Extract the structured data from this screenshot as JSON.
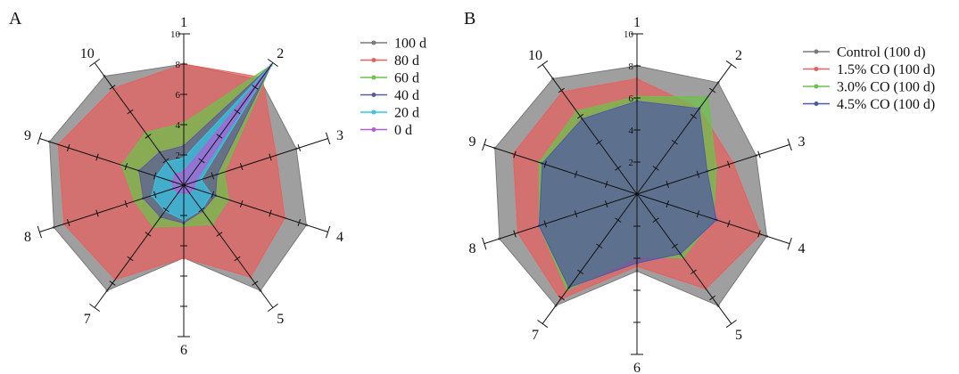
{
  "chart_data": [
    {
      "type": "radar",
      "panel_label": "A",
      "axes": [
        "1",
        "2",
        "3",
        "4",
        "5",
        "6",
        "7",
        "8",
        "9",
        "10"
      ],
      "rlim": [
        0,
        10
      ],
      "r_ticks": [
        "2",
        "4",
        "6",
        "8",
        "10"
      ],
      "legend_position": "right",
      "series": [
        {
          "name": "100 d",
          "color": "#7a7a7a",
          "values": [
            8,
            8.6,
            7.8,
            8.5,
            8.6,
            4.8,
            8.6,
            9.0,
            9.3,
            8.9
          ]
        },
        {
          "name": "80 d",
          "color": "#e8605f",
          "values": [
            8,
            8.8,
            6.4,
            7.0,
            7.5,
            4.8,
            7.7,
            8.3,
            8.7,
            7.9
          ]
        },
        {
          "name": "60 d",
          "color": "#6cc24a",
          "values": [
            4.1,
            9.8,
            2.8,
            3.1,
            3.2,
            2.7,
            3.4,
            3.4,
            4.3,
            4.3
          ]
        },
        {
          "name": "40 d",
          "color": "#5a5a9a",
          "values": [
            2.6,
            9.8,
            2.3,
            2.2,
            2.1,
            2.5,
            2.6,
            2.8,
            3.1,
            2.7
          ]
        },
        {
          "name": "20 d",
          "color": "#38c5e6",
          "values": [
            1.8,
            9.8,
            1.2,
            1.9,
            2.0,
            2.3,
            2.1,
            2.2,
            1.9,
            1.9
          ]
        },
        {
          "name": "0 d",
          "color": "#b05fd6",
          "values": [
            0.9,
            9.6,
            0.8,
            0.7,
            0.6,
            0.5,
            0.6,
            0.7,
            0.8,
            0.9
          ]
        }
      ]
    },
    {
      "type": "radar",
      "panel_label": "B",
      "axes": [
        "1",
        "2",
        "3",
        "4",
        "5",
        "6",
        "7",
        "8",
        "9",
        "10"
      ],
      "rlim": [
        0,
        10
      ],
      "r_ticks": [
        "2",
        "4",
        "6",
        "8",
        "10"
      ],
      "legend_position": "right",
      "series": [
        {
          "name": "Control (100 d)",
          "color": "#7a7a7a",
          "values": [
            8,
            8.6,
            7.8,
            8.5,
            8.6,
            4.8,
            8.6,
            9.0,
            9.3,
            8.9
          ]
        },
        {
          "name": "1.5% CO (100 d)",
          "color": "#e8605f",
          "values": [
            7.2,
            6.6,
            6.3,
            8.1,
            7.3,
            4.5,
            8.1,
            7.8,
            8.1,
            7.9
          ]
        },
        {
          "name": "3.0% CO (100 d)",
          "color": "#6cc24a",
          "values": [
            6.1,
            7.5,
            5.2,
            5.0,
            4.9,
            3.9,
            7.4,
            6.4,
            6.4,
            6.4
          ]
        },
        {
          "name": "4.5% CO (100 d)",
          "color": "#4c5aa6",
          "values": [
            5.8,
            6.6,
            4.6,
            5.2,
            4.6,
            4.3,
            7.2,
            6.4,
            6.2,
            5.8
          ]
        }
      ]
    }
  ]
}
